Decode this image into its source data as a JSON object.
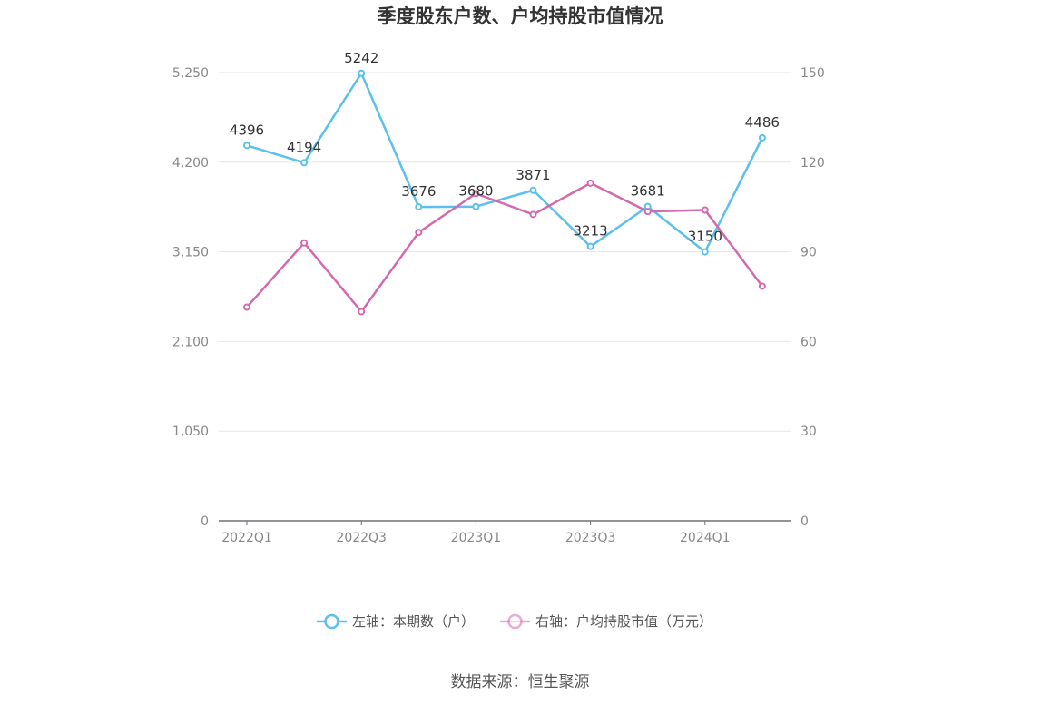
{
  "chart_data": {
    "type": "line",
    "title": "季度股东户数、户均持股市值情况",
    "categories": [
      "2022Q1",
      "2022Q2",
      "2022Q3",
      "2022Q4",
      "2023Q1",
      "2023Q2",
      "2023Q3",
      "2023Q4",
      "2024Q1",
      "2024Q2"
    ],
    "x_tick_labels": [
      "2022Q1",
      "2022Q3",
      "2023Q1",
      "2023Q3",
      "2024Q1"
    ],
    "y_left": {
      "ticks": [
        "0",
        "1,050",
        "2,100",
        "3,150",
        "4,200",
        "5,250"
      ],
      "ylim": [
        0,
        5250
      ]
    },
    "y_right": {
      "ticks": [
        "0",
        "30",
        "60",
        "90",
        "120",
        "150"
      ],
      "ylim": [
        0,
        150
      ]
    },
    "series": [
      {
        "name": "左轴：本期数（户）",
        "axis": "left",
        "color": "#5bc0eb",
        "values": [
          4396,
          4194,
          5242,
          3676,
          3680,
          3871,
          3213,
          3681,
          3150,
          4486
        ],
        "labels": [
          "4396",
          "4194",
          "5242",
          "3676",
          "3680",
          "3871",
          "3213",
          "3681",
          "3150",
          "4486"
        ]
      },
      {
        "name": "右轴：户均持股市值（万元）",
        "axis": "right",
        "color": "#d46aae",
        "values": [
          71.5,
          93.0,
          70.0,
          96.5,
          109.5,
          102.5,
          113.0,
          103.5,
          104.0,
          78.5
        ]
      }
    ],
    "grid": true,
    "legend_position": "bottom-center"
  },
  "source": "数据来源：恒生聚源"
}
